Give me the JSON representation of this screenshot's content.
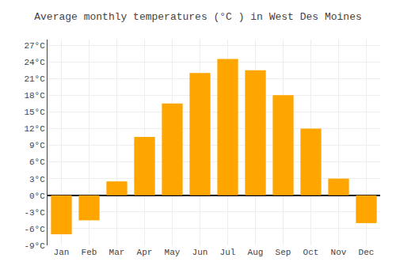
{
  "chart_data": {
    "type": "bar",
    "title": "Average monthly temperatures (°C ) in West Des Moines",
    "categories": [
      "Jan",
      "Feb",
      "Mar",
      "Apr",
      "May",
      "Jun",
      "Jul",
      "Aug",
      "Sep",
      "Oct",
      "Nov",
      "Dec"
    ],
    "values": [
      -7.0,
      -4.5,
      2.5,
      10.5,
      16.5,
      22.0,
      24.5,
      22.5,
      18.0,
      12.0,
      3.0,
      -5.0
    ],
    "color": "#FFA500",
    "ylim": [
      -9,
      28
    ],
    "yticks": [
      {
        "value": -9,
        "label": "-9°C"
      },
      {
        "value": -6,
        "label": "-6°C"
      },
      {
        "value": -3,
        "label": "-3°C"
      },
      {
        "value": 0,
        "label": "0°C"
      },
      {
        "value": 3,
        "label": "3°C"
      },
      {
        "value": 6,
        "label": "6°C"
      },
      {
        "value": 9,
        "label": "9°C"
      },
      {
        "value": 12,
        "label": "12°C"
      },
      {
        "value": 15,
        "label": "15°C"
      },
      {
        "value": 18,
        "label": "18°C"
      },
      {
        "value": 21,
        "label": "21°C"
      },
      {
        "value": 24,
        "label": "24°C"
      },
      {
        "value": 27,
        "label": "27°C"
      }
    ],
    "grid": true
  }
}
